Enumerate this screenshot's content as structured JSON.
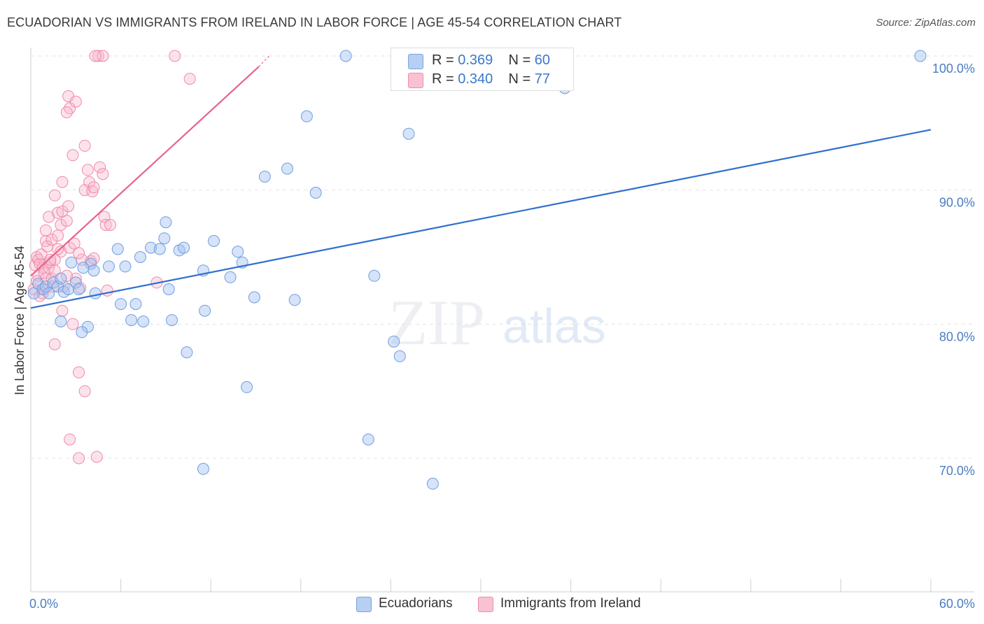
{
  "header": {
    "title": "ECUADORIAN VS IMMIGRANTS FROM IRELAND IN LABOR FORCE | AGE 45-54 CORRELATION CHART",
    "source": "Source: ZipAtlas.com"
  },
  "watermark": {
    "zip": "ZIP",
    "atlas": "atlas"
  },
  "legend": {
    "rows": [
      {
        "r_label": "R =",
        "r_value": "0.369",
        "n_label": "N =",
        "n_value": "60"
      },
      {
        "r_label": "R =",
        "r_value": "0.340",
        "n_label": "N =",
        "n_value": "77"
      }
    ]
  },
  "bottom_legend": {
    "series1": "Ecuadorians",
    "series2": "Immigrants from Ireland"
  },
  "chart_data": {
    "type": "scatter",
    "title": "ECUADORIAN VS IMMIGRANTS FROM IRELAND IN LABOR FORCE | AGE 45-54 CORRELATION CHART",
    "xlabel": "",
    "ylabel": "In Labor Force | Age 45-54",
    "xlim": [
      0,
      60
    ],
    "ylim": [
      60,
      100
    ],
    "x_tick_labels": [
      "0.0%",
      "60.0%"
    ],
    "y_ticks": [
      70,
      80,
      90,
      100
    ],
    "y_tick_labels": [
      "70.0%",
      "80.0%",
      "90.0%",
      "100.0%"
    ],
    "colors": {
      "ecuadorians": "#6f9fe0",
      "ireland": "#f08aaa",
      "ecuadorians_line": "#2f6fd0",
      "ireland_line": "#e8628e",
      "axis_text": "#4a7cc4"
    },
    "series": [
      {
        "name": "Ecuadorians",
        "r": 0.369,
        "n": 60,
        "trend": {
          "x": [
            0,
            60
          ],
          "y": [
            81.2,
            94.5
          ]
        },
        "points": [
          [
            0.2,
            82.3
          ],
          [
            0.5,
            83.0
          ],
          [
            0.8,
            82.6
          ],
          [
            1.0,
            82.8
          ],
          [
            1.2,
            82.3
          ],
          [
            1.5,
            83.1
          ],
          [
            1.8,
            82.8
          ],
          [
            2.0,
            83.4
          ],
          [
            2.2,
            82.4
          ],
          [
            2.5,
            82.6
          ],
          [
            2.0,
            80.2
          ],
          [
            2.7,
            84.6
          ],
          [
            3.0,
            83.1
          ],
          [
            3.2,
            82.6
          ],
          [
            4.0,
            84.5
          ],
          [
            4.2,
            84.0
          ],
          [
            4.3,
            82.3
          ],
          [
            3.8,
            79.8
          ],
          [
            3.4,
            79.4
          ],
          [
            5.2,
            84.3
          ],
          [
            5.8,
            85.6
          ],
          [
            6.3,
            84.3
          ],
          [
            6.0,
            81.5
          ],
          [
            6.7,
            80.3
          ],
          [
            7.0,
            81.5
          ],
          [
            7.3,
            85.0
          ],
          [
            7.5,
            80.2
          ],
          [
            8.0,
            85.7
          ],
          [
            8.6,
            85.6
          ],
          [
            8.9,
            86.4
          ],
          [
            9.0,
            87.6
          ],
          [
            9.2,
            82.6
          ],
          [
            9.4,
            80.3
          ],
          [
            9.9,
            85.5
          ],
          [
            10.2,
            85.7
          ],
          [
            10.4,
            77.9
          ],
          [
            11.5,
            84.0
          ],
          [
            11.6,
            81.0
          ],
          [
            12.2,
            86.2
          ],
          [
            13.3,
            83.5
          ],
          [
            13.8,
            85.4
          ],
          [
            14.1,
            84.6
          ],
          [
            14.9,
            82.0
          ],
          [
            14.4,
            75.3
          ],
          [
            15.6,
            91.0
          ],
          [
            17.1,
            91.6
          ],
          [
            17.6,
            81.8
          ],
          [
            18.4,
            95.5
          ],
          [
            19.0,
            89.8
          ],
          [
            11.5,
            69.2
          ],
          [
            21.0,
            100.0
          ],
          [
            22.5,
            71.4
          ],
          [
            22.9,
            83.6
          ],
          [
            24.2,
            78.7
          ],
          [
            24.6,
            77.6
          ],
          [
            25.2,
            94.2
          ],
          [
            26.8,
            68.1
          ],
          [
            35.6,
            97.6
          ],
          [
            59.3,
            100.0
          ],
          [
            3.5,
            84.2
          ]
        ]
      },
      {
        "name": "Immigrants from Ireland",
        "r": 0.34,
        "n": 77,
        "trend": {
          "x": [
            0,
            15.2
          ],
          "y": [
            83.6,
            99.2
          ]
        },
        "points": [
          [
            0.2,
            82.6
          ],
          [
            0.3,
            84.4
          ],
          [
            0.4,
            85.0
          ],
          [
            0.5,
            84.8
          ],
          [
            0.5,
            83.6
          ],
          [
            0.6,
            84.5
          ],
          [
            0.7,
            85.2
          ],
          [
            0.8,
            84.2
          ],
          [
            0.9,
            83.8
          ],
          [
            1.0,
            83.4
          ],
          [
            0.6,
            82.1
          ],
          [
            0.9,
            82.6
          ],
          [
            1.0,
            86.2
          ],
          [
            1.1,
            85.8
          ],
          [
            1.2,
            84.2
          ],
          [
            1.3,
            84.6
          ],
          [
            1.4,
            83.4
          ],
          [
            1.5,
            82.8
          ],
          [
            1.0,
            87.0
          ],
          [
            1.2,
            88.0
          ],
          [
            1.4,
            86.3
          ],
          [
            1.6,
            89.6
          ],
          [
            1.6,
            84.0
          ],
          [
            1.8,
            86.6
          ],
          [
            2.0,
            85.4
          ],
          [
            2.0,
            87.4
          ],
          [
            1.8,
            88.3
          ],
          [
            2.1,
            88.4
          ],
          [
            2.1,
            90.6
          ],
          [
            2.4,
            87.7
          ],
          [
            2.5,
            88.8
          ],
          [
            2.6,
            85.7
          ],
          [
            2.9,
            86.0
          ],
          [
            3.0,
            83.4
          ],
          [
            3.4,
            84.8
          ],
          [
            3.2,
            85.3
          ],
          [
            3.6,
            90.0
          ],
          [
            3.6,
            93.3
          ],
          [
            3.8,
            91.5
          ],
          [
            3.9,
            90.6
          ],
          [
            4.1,
            89.9
          ],
          [
            4.2,
            90.2
          ],
          [
            4.0,
            84.7
          ],
          [
            4.6,
            91.7
          ],
          [
            4.8,
            91.2
          ],
          [
            4.9,
            88.0
          ],
          [
            5.0,
            87.4
          ],
          [
            5.1,
            82.5
          ],
          [
            5.3,
            87.4
          ],
          [
            2.5,
            97.0
          ],
          [
            2.6,
            96.1
          ],
          [
            2.4,
            95.8
          ],
          [
            3.0,
            96.6
          ],
          [
            2.8,
            92.6
          ],
          [
            4.5,
            100.0
          ],
          [
            4.8,
            100.0
          ],
          [
            4.3,
            100.0
          ],
          [
            9.6,
            100.0
          ],
          [
            10.6,
            98.3
          ],
          [
            2.1,
            81.0
          ],
          [
            1.6,
            78.5
          ],
          [
            2.8,
            80.0
          ],
          [
            3.2,
            76.4
          ],
          [
            3.6,
            75.0
          ],
          [
            2.6,
            71.4
          ],
          [
            3.2,
            70.0
          ],
          [
            4.4,
            70.1
          ],
          [
            8.4,
            83.1
          ],
          [
            1.6,
            84.8
          ],
          [
            2.2,
            82.8
          ],
          [
            1.8,
            85.6
          ],
          [
            0.4,
            83.2
          ],
          [
            1.3,
            84.8
          ],
          [
            0.8,
            82.3
          ],
          [
            2.4,
            83.6
          ],
          [
            3.3,
            82.7
          ],
          [
            4.2,
            84.9
          ]
        ]
      }
    ]
  }
}
